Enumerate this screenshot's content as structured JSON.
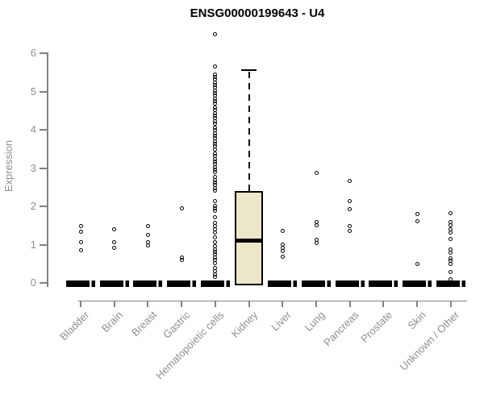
{
  "window": {
    "background": "#ffffff"
  },
  "chart_data": {
    "type": "boxplot",
    "title": "ENSG00000199643 - U4",
    "xlabel": "",
    "ylabel": "Expression",
    "ylim": [
      0,
      6.6
    ],
    "yticks": [
      0,
      1,
      2,
      3,
      4,
      5,
      6
    ],
    "grid": false,
    "legend": null,
    "categories": [
      "Bladder",
      "Brain",
      "Breast",
      "Gastric",
      "Hematopoietic cells",
      "Kidney",
      "Liver",
      "Lung",
      "Pancreas",
      "Prostate",
      "Skin",
      "Unknown / Other"
    ],
    "boxes": [
      {
        "category": "Bladder",
        "q1": 0,
        "median": 0,
        "q3": 0,
        "whisker_low": 0,
        "whisker_high": 0,
        "collapsed": true,
        "outliers": [
          1.49,
          1.33,
          1.07,
          0.86
        ]
      },
      {
        "category": "Brain",
        "q1": 0,
        "median": 0,
        "q3": 0,
        "whisker_low": 0,
        "whisker_high": 0,
        "collapsed": true,
        "outliers": [
          1.41,
          1.07,
          0.91
        ]
      },
      {
        "category": "Breast",
        "q1": 0,
        "median": 0,
        "q3": 0,
        "whisker_low": 0,
        "whisker_high": 0,
        "collapsed": true,
        "outliers": [
          1.49,
          1.25,
          1.07,
          0.97
        ]
      },
      {
        "category": "Gastric",
        "q1": 0,
        "median": 0,
        "q3": 0,
        "whisker_low": 0,
        "whisker_high": 0,
        "collapsed": true,
        "outliers": [
          1.95,
          0.66,
          0.59
        ]
      },
      {
        "category": "Hematopoietic cells",
        "q1": 0,
        "median": 0,
        "q3": 0,
        "whisker_low": 0,
        "whisker_high": 0,
        "collapsed": true,
        "outliers": [
          6.5,
          5.65,
          5.45,
          5.38,
          5.31,
          5.24,
          5.17,
          5.1,
          5.03,
          4.96,
          4.89,
          4.82,
          4.75,
          4.68,
          4.58,
          4.51,
          4.44,
          4.37,
          4.3,
          4.23,
          4.16,
          4.05,
          3.98,
          3.91,
          3.84,
          3.77,
          3.7,
          3.63,
          3.56,
          3.49,
          3.38,
          3.31,
          3.24,
          3.17,
          3.1,
          3.03,
          2.96,
          2.89,
          2.76,
          2.69,
          2.62,
          2.55,
          2.48,
          2.41,
          2.13,
          2.02,
          1.95,
          1.88,
          1.71,
          1.56,
          1.48,
          1.4,
          1.32,
          1.18,
          1.07,
          0.95,
          0.88,
          0.81,
          0.74,
          0.67,
          0.6,
          0.51,
          0.4,
          0.31,
          0.23,
          0.15
        ]
      },
      {
        "category": "Kidney",
        "q1": 0,
        "median": 1.1,
        "q3": 2.4,
        "whisker_low": 0,
        "whisker_high": 5.55,
        "collapsed": false,
        "outliers": []
      },
      {
        "category": "Liver",
        "q1": 0,
        "median": 0,
        "q3": 0,
        "whisker_low": 0,
        "whisker_high": 0,
        "collapsed": true,
        "outliers": [
          1.35,
          1.01,
          0.92,
          0.83,
          0.68
        ]
      },
      {
        "category": "Lung",
        "q1": 0,
        "median": 0,
        "q3": 0,
        "whisker_low": 0,
        "whisker_high": 0,
        "collapsed": true,
        "outliers": [
          2.87,
          1.58,
          1.5,
          1.12,
          1.04
        ]
      },
      {
        "category": "Pancreas",
        "q1": 0,
        "median": 0,
        "q3": 0,
        "whisker_low": 0,
        "whisker_high": 0,
        "collapsed": true,
        "outliers": [
          2.66,
          2.13,
          1.92,
          1.49,
          1.35
        ]
      },
      {
        "category": "Prostate",
        "q1": 0,
        "median": 0,
        "q3": 0,
        "whisker_low": 0,
        "whisker_high": 0,
        "collapsed": true,
        "outliers": []
      },
      {
        "category": "Skin",
        "q1": 0,
        "median": 0,
        "q3": 0,
        "whisker_low": 0,
        "whisker_high": 0,
        "collapsed": true,
        "outliers": [
          1.81,
          1.62,
          0.5
        ]
      },
      {
        "category": "Unknown / Other",
        "q1": 0,
        "median": 0,
        "q3": 0,
        "whisker_low": 0,
        "whisker_high": 0,
        "collapsed": true,
        "outliers": [
          1.82,
          1.6,
          1.5,
          1.4,
          1.32,
          1.15,
          0.87,
          0.79,
          0.65,
          0.58,
          0.5,
          0.28,
          0.1
        ]
      }
    ],
    "colors": {
      "box_fill": "#ece6cb",
      "box_border": "#000000",
      "median": "#000000",
      "outlier": "#000000",
      "axis_line": "#828282",
      "tick_label": "#8f8f8f",
      "title": "#000000",
      "background": "#ffffff"
    }
  }
}
